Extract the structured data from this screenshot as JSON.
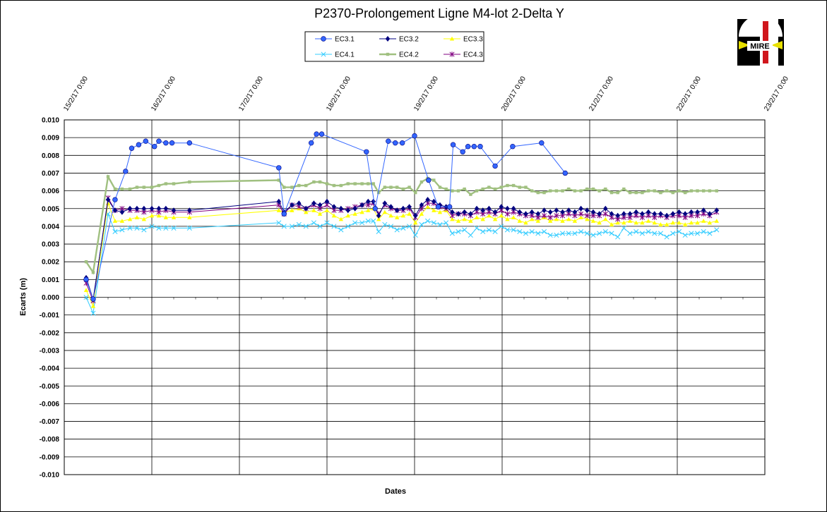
{
  "chart_data": {
    "type": "line",
    "title": "P2370-Prolongement  Ligne  M4-lot  2-Delta  Y",
    "xlabel": "Dates",
    "ylabel": "Ecarts (m)",
    "x_ticks": [
      "15/2/17 0:00",
      "16/2/17 0:00",
      "17/2/17 0:00",
      "18/2/17 0:00",
      "19/2/17 0:00",
      "20/2/17 0:00",
      "21/2/17 0:00",
      "22/2/17 0:00",
      "23/2/17 0:00"
    ],
    "xlim": [
      15,
      23
    ],
    "ylim": [
      -0.01,
      0.01
    ],
    "y_ticks": [
      "0.010",
      "0.009",
      "0.008",
      "0.007",
      "0.006",
      "0.005",
      "0.004",
      "0.003",
      "0.002",
      "0.001",
      "0.000",
      "-0.001",
      "-0.002",
      "-0.003",
      "-0.004",
      "-0.005",
      "-0.006",
      "-0.007",
      "-0.008",
      "-0.009",
      "-0.010"
    ],
    "grid": true,
    "legend_position": "top-center",
    "series": [
      {
        "name": "EC3.1",
        "color": "#3366ff",
        "marker": "circle",
        "x": [
          15.25,
          15.33,
          15.58,
          15.7,
          15.77,
          15.85,
          15.93,
          16.03,
          16.08,
          16.16,
          16.23,
          16.43,
          17.45,
          17.51,
          17.82,
          17.88,
          17.94,
          18.45,
          18.55,
          18.7,
          18.78,
          18.86,
          19.0,
          19.16,
          19.27,
          19.4,
          19.44,
          19.55,
          19.61,
          19.68,
          19.75,
          19.92,
          20.12,
          20.45,
          20.72
        ],
        "y": [
          0.001,
          -0.0001,
          0.0055,
          0.0071,
          0.0084,
          0.0086,
          0.0088,
          0.0085,
          0.0088,
          0.0087,
          0.0087,
          0.0087,
          0.0073,
          0.0047,
          0.0087,
          0.0092,
          0.0092,
          0.0082,
          0.005,
          0.0088,
          0.0087,
          0.0087,
          0.0091,
          0.0066,
          0.0051,
          0.0051,
          0.0086,
          0.0082,
          0.0085,
          0.0085,
          0.0085,
          0.0074,
          0.0085,
          0.0087,
          0.007
        ]
      },
      {
        "name": "EC3.2",
        "color": "#000080",
        "marker": "diamond",
        "x": [
          15.25,
          15.33,
          15.5,
          15.58,
          15.66,
          15.75,
          15.83,
          15.91,
          16.0,
          16.08,
          16.16,
          16.25,
          16.43,
          17.45,
          17.51,
          17.6,
          17.68,
          17.76,
          17.85,
          17.92,
          18.0,
          18.08,
          18.16,
          18.24,
          18.32,
          18.4,
          18.47,
          18.53,
          18.59,
          18.66,
          18.73,
          18.8,
          18.87,
          18.94,
          19.01,
          19.08,
          19.15,
          19.22,
          19.29,
          19.36,
          19.43,
          19.5,
          19.57,
          19.64,
          19.71,
          19.78,
          19.85,
          19.92,
          19.99,
          20.06,
          20.13,
          20.2,
          20.27,
          20.34,
          20.41,
          20.48,
          20.55,
          20.62,
          20.69,
          20.76,
          20.83,
          20.9,
          20.97,
          21.04,
          21.11,
          21.18,
          21.25,
          21.32,
          21.39,
          21.46,
          21.53,
          21.6,
          21.67,
          21.74,
          21.81,
          21.88,
          21.95,
          22.02,
          22.09,
          22.16,
          22.23,
          22.3,
          22.37,
          22.45
        ],
        "y": [
          0.0011,
          -0.0001,
          0.0055,
          0.0049,
          0.0048,
          0.005,
          0.005,
          0.005,
          0.005,
          0.005,
          0.005,
          0.0049,
          0.0049,
          0.0054,
          0.0048,
          0.0052,
          0.0053,
          0.005,
          0.0053,
          0.0052,
          0.0054,
          0.0051,
          0.005,
          0.0049,
          0.005,
          0.0052,
          0.0054,
          0.0054,
          0.0046,
          0.0053,
          0.0051,
          0.0049,
          0.005,
          0.0051,
          0.0046,
          0.0052,
          0.0055,
          0.0054,
          0.0052,
          0.0051,
          0.0048,
          0.0047,
          0.0048,
          0.0047,
          0.005,
          0.0049,
          0.005,
          0.0048,
          0.0051,
          0.005,
          0.005,
          0.0048,
          0.0047,
          0.0048,
          0.0047,
          0.0049,
          0.0048,
          0.0049,
          0.0048,
          0.0049,
          0.0048,
          0.005,
          0.0049,
          0.0048,
          0.0047,
          0.005,
          0.0047,
          0.0046,
          0.0047,
          0.0047,
          0.0048,
          0.0047,
          0.0048,
          0.0047,
          0.0047,
          0.0046,
          0.0047,
          0.0048,
          0.0047,
          0.0048,
          0.0048,
          0.0049,
          0.0047,
          0.0049
        ]
      },
      {
        "name": "EC3.3",
        "color": "#ffff00",
        "marker": "triangle",
        "x": [
          15.25,
          15.33,
          15.5,
          15.58,
          15.66,
          15.75,
          15.83,
          15.91,
          16.0,
          16.08,
          16.16,
          16.25,
          16.43,
          17.45,
          17.51,
          17.6,
          17.68,
          17.76,
          17.85,
          17.92,
          18.0,
          18.08,
          18.16,
          18.24,
          18.32,
          18.4,
          18.47,
          18.53,
          18.59,
          18.66,
          18.73,
          18.8,
          18.87,
          18.94,
          19.01,
          19.08,
          19.15,
          19.22,
          19.29,
          19.36,
          19.43,
          19.5,
          19.57,
          19.64,
          19.71,
          19.78,
          19.85,
          19.92,
          19.99,
          20.06,
          20.13,
          20.2,
          20.27,
          20.34,
          20.41,
          20.48,
          20.55,
          20.62,
          20.69,
          20.76,
          20.83,
          20.9,
          20.97,
          21.04,
          21.11,
          21.18,
          21.25,
          21.32,
          21.39,
          21.46,
          21.53,
          21.6,
          21.67,
          21.74,
          21.81,
          21.88,
          21.95,
          22.02,
          22.09,
          22.16,
          22.23,
          22.3,
          22.37,
          22.45
        ],
        "y": [
          0.0004,
          -0.0005,
          0.0053,
          0.0043,
          0.0043,
          0.0044,
          0.0045,
          0.0044,
          0.0046,
          0.0046,
          0.0045,
          0.0045,
          0.0045,
          0.0049,
          0.0048,
          0.0049,
          0.005,
          0.0048,
          0.0049,
          0.0047,
          0.0049,
          0.0046,
          0.0044,
          0.0046,
          0.0047,
          0.0048,
          0.0049,
          0.005,
          0.0044,
          0.0048,
          0.0046,
          0.0045,
          0.0046,
          0.0047,
          0.0042,
          0.0047,
          0.0051,
          0.0049,
          0.0048,
          0.0049,
          0.0044,
          0.0043,
          0.0044,
          0.0043,
          0.0045,
          0.0044,
          0.0046,
          0.0044,
          0.0046,
          0.0044,
          0.0045,
          0.0043,
          0.0042,
          0.0044,
          0.0043,
          0.0045,
          0.0043,
          0.0044,
          0.0043,
          0.0044,
          0.0043,
          0.0045,
          0.0044,
          0.0043,
          0.0042,
          0.0044,
          0.0041,
          0.0042,
          0.0042,
          0.0043,
          0.0042,
          0.0042,
          0.0043,
          0.0042,
          0.0041,
          0.0041,
          0.0042,
          0.0042,
          0.0041,
          0.0042,
          0.0042,
          0.0043,
          0.0042,
          0.0043
        ]
      },
      {
        "name": "EC4.1",
        "color": "#33ccff",
        "marker": "x",
        "x": [
          15.25,
          15.33,
          15.5,
          15.58,
          15.66,
          15.75,
          15.83,
          15.91,
          16.0,
          16.08,
          16.16,
          16.25,
          16.43,
          17.45,
          17.51,
          17.6,
          17.68,
          17.76,
          17.85,
          17.92,
          18.0,
          18.08,
          18.16,
          18.24,
          18.32,
          18.4,
          18.47,
          18.53,
          18.59,
          18.66,
          18.73,
          18.8,
          18.87,
          18.94,
          19.01,
          19.08,
          19.15,
          19.22,
          19.29,
          19.36,
          19.43,
          19.5,
          19.57,
          19.64,
          19.71,
          19.78,
          19.85,
          19.92,
          19.99,
          20.06,
          20.13,
          20.2,
          20.27,
          20.34,
          20.41,
          20.48,
          20.55,
          20.62,
          20.69,
          20.76,
          20.83,
          20.9,
          20.97,
          21.04,
          21.11,
          21.18,
          21.25,
          21.32,
          21.39,
          21.46,
          21.53,
          21.6,
          21.67,
          21.74,
          21.81,
          21.88,
          21.95,
          22.02,
          22.09,
          22.16,
          22.23,
          22.3,
          22.37,
          22.45
        ],
        "y": [
          0.0,
          -0.0009,
          0.0047,
          0.0037,
          0.0038,
          0.0039,
          0.0039,
          0.0038,
          0.004,
          0.0039,
          0.0039,
          0.0039,
          0.0039,
          0.0042,
          0.004,
          0.004,
          0.0041,
          0.004,
          0.0042,
          0.004,
          0.0042,
          0.004,
          0.0038,
          0.004,
          0.0042,
          0.0042,
          0.0043,
          0.0043,
          0.0037,
          0.0041,
          0.004,
          0.0038,
          0.0039,
          0.004,
          0.0035,
          0.0041,
          0.0043,
          0.0042,
          0.0041,
          0.0042,
          0.0036,
          0.0037,
          0.0038,
          0.0035,
          0.0039,
          0.0037,
          0.0038,
          0.0037,
          0.004,
          0.0038,
          0.0038,
          0.0037,
          0.0036,
          0.0037,
          0.0036,
          0.0037,
          0.0035,
          0.0035,
          0.0036,
          0.0036,
          0.0036,
          0.0037,
          0.0036,
          0.0035,
          0.0036,
          0.0037,
          0.0036,
          0.0034,
          0.0039,
          0.0036,
          0.0037,
          0.0036,
          0.0037,
          0.0036,
          0.0036,
          0.0034,
          0.0036,
          0.0037,
          0.0035,
          0.0036,
          0.0036,
          0.0037,
          0.0036,
          0.0038
        ]
      },
      {
        "name": "EC4.2",
        "color": "#a0c080",
        "marker": "square",
        "x": [
          15.25,
          15.33,
          15.5,
          15.58,
          15.66,
          15.75,
          15.83,
          15.91,
          16.0,
          16.08,
          16.16,
          16.25,
          16.43,
          17.45,
          17.51,
          17.6,
          17.68,
          17.76,
          17.85,
          17.92,
          18.0,
          18.08,
          18.16,
          18.24,
          18.32,
          18.4,
          18.47,
          18.53,
          18.59,
          18.66,
          18.73,
          18.8,
          18.87,
          18.94,
          19.01,
          19.08,
          19.15,
          19.22,
          19.29,
          19.36,
          19.43,
          19.5,
          19.57,
          19.64,
          19.71,
          19.78,
          19.85,
          19.92,
          19.99,
          20.06,
          20.13,
          20.2,
          20.27,
          20.34,
          20.41,
          20.48,
          20.55,
          20.62,
          20.69,
          20.76,
          20.83,
          20.9,
          20.97,
          21.04,
          21.11,
          21.18,
          21.25,
          21.32,
          21.39,
          21.46,
          21.53,
          21.6,
          21.67,
          21.74,
          21.81,
          21.88,
          21.95,
          22.02,
          22.09,
          22.16,
          22.23,
          22.3,
          22.37,
          22.45
        ],
        "y": [
          0.002,
          0.0014,
          0.0068,
          0.0061,
          0.0061,
          0.0061,
          0.0062,
          0.0062,
          0.0062,
          0.0063,
          0.0064,
          0.0064,
          0.0065,
          0.0066,
          0.0062,
          0.0062,
          0.0063,
          0.0063,
          0.0065,
          0.0065,
          0.0064,
          0.0063,
          0.0063,
          0.0064,
          0.0064,
          0.0064,
          0.0064,
          0.0064,
          0.0059,
          0.0062,
          0.0062,
          0.0062,
          0.0061,
          0.0062,
          0.0059,
          0.0065,
          0.0067,
          0.0066,
          0.0062,
          0.0061,
          0.006,
          0.006,
          0.0061,
          0.0058,
          0.006,
          0.0061,
          0.0062,
          0.0061,
          0.0062,
          0.0063,
          0.0063,
          0.0062,
          0.0062,
          0.006,
          0.0059,
          0.0059,
          0.006,
          0.006,
          0.006,
          0.0061,
          0.006,
          0.006,
          0.0061,
          0.0061,
          0.006,
          0.0061,
          0.0059,
          0.0059,
          0.0061,
          0.0059,
          0.0059,
          0.0059,
          0.006,
          0.006,
          0.0059,
          0.006,
          0.0059,
          0.006,
          0.0059,
          0.006,
          0.006,
          0.006,
          0.006,
          0.006
        ]
      },
      {
        "name": "EC4.3",
        "color": "#800080",
        "marker": "star",
        "x": [
          15.25,
          15.33,
          15.5,
          15.58,
          15.66,
          15.75,
          15.83,
          15.91,
          16.0,
          16.08,
          16.16,
          16.25,
          16.43,
          17.45,
          17.51,
          17.6,
          17.68,
          17.76,
          17.85,
          17.92,
          18.0,
          18.08,
          18.16,
          18.24,
          18.32,
          18.4,
          18.47,
          18.53,
          18.59,
          18.66,
          18.73,
          18.8,
          18.87,
          18.94,
          19.01,
          19.08,
          19.15,
          19.22,
          19.29,
          19.36,
          19.43,
          19.5,
          19.57,
          19.64,
          19.71,
          19.78,
          19.85,
          19.92,
          19.99,
          20.06,
          20.13,
          20.2,
          20.27,
          20.34,
          20.41,
          20.48,
          20.55,
          20.62,
          20.69,
          20.76,
          20.83,
          20.9,
          20.97,
          21.04,
          21.11,
          21.18,
          21.25,
          21.32,
          21.39,
          21.46,
          21.53,
          21.6,
          21.67,
          21.74,
          21.81,
          21.88,
          21.95,
          22.02,
          22.09,
          22.16,
          22.23,
          22.3,
          22.37,
          22.45
        ],
        "y": [
          0.0008,
          -0.0002,
          0.0056,
          0.0049,
          0.005,
          0.0049,
          0.0049,
          0.0048,
          0.0049,
          0.0048,
          0.0049,
          0.0048,
          0.0048,
          0.0052,
          0.0047,
          0.0052,
          0.0051,
          0.005,
          0.0052,
          0.005,
          0.0052,
          0.0049,
          0.0049,
          0.005,
          0.0051,
          0.0052,
          0.0052,
          0.0053,
          0.0047,
          0.0052,
          0.005,
          0.0049,
          0.0049,
          0.005,
          0.0045,
          0.005,
          0.0053,
          0.0053,
          0.0051,
          0.005,
          0.0046,
          0.0047,
          0.0047,
          0.0046,
          0.0048,
          0.0047,
          0.0048,
          0.0047,
          0.0049,
          0.0047,
          0.0048,
          0.0047,
          0.0046,
          0.0046,
          0.0045,
          0.0046,
          0.0045,
          0.0046,
          0.0046,
          0.0047,
          0.0046,
          0.0047,
          0.0046,
          0.0046,
          0.0046,
          0.0047,
          0.0045,
          0.0044,
          0.0045,
          0.0045,
          0.0046,
          0.0045,
          0.0046,
          0.0045,
          0.0046,
          0.0045,
          0.0046,
          0.0046,
          0.0045,
          0.0046,
          0.0046,
          0.0047,
          0.0046,
          0.0048
        ]
      }
    ]
  },
  "logo": {
    "text": "MIRE"
  }
}
